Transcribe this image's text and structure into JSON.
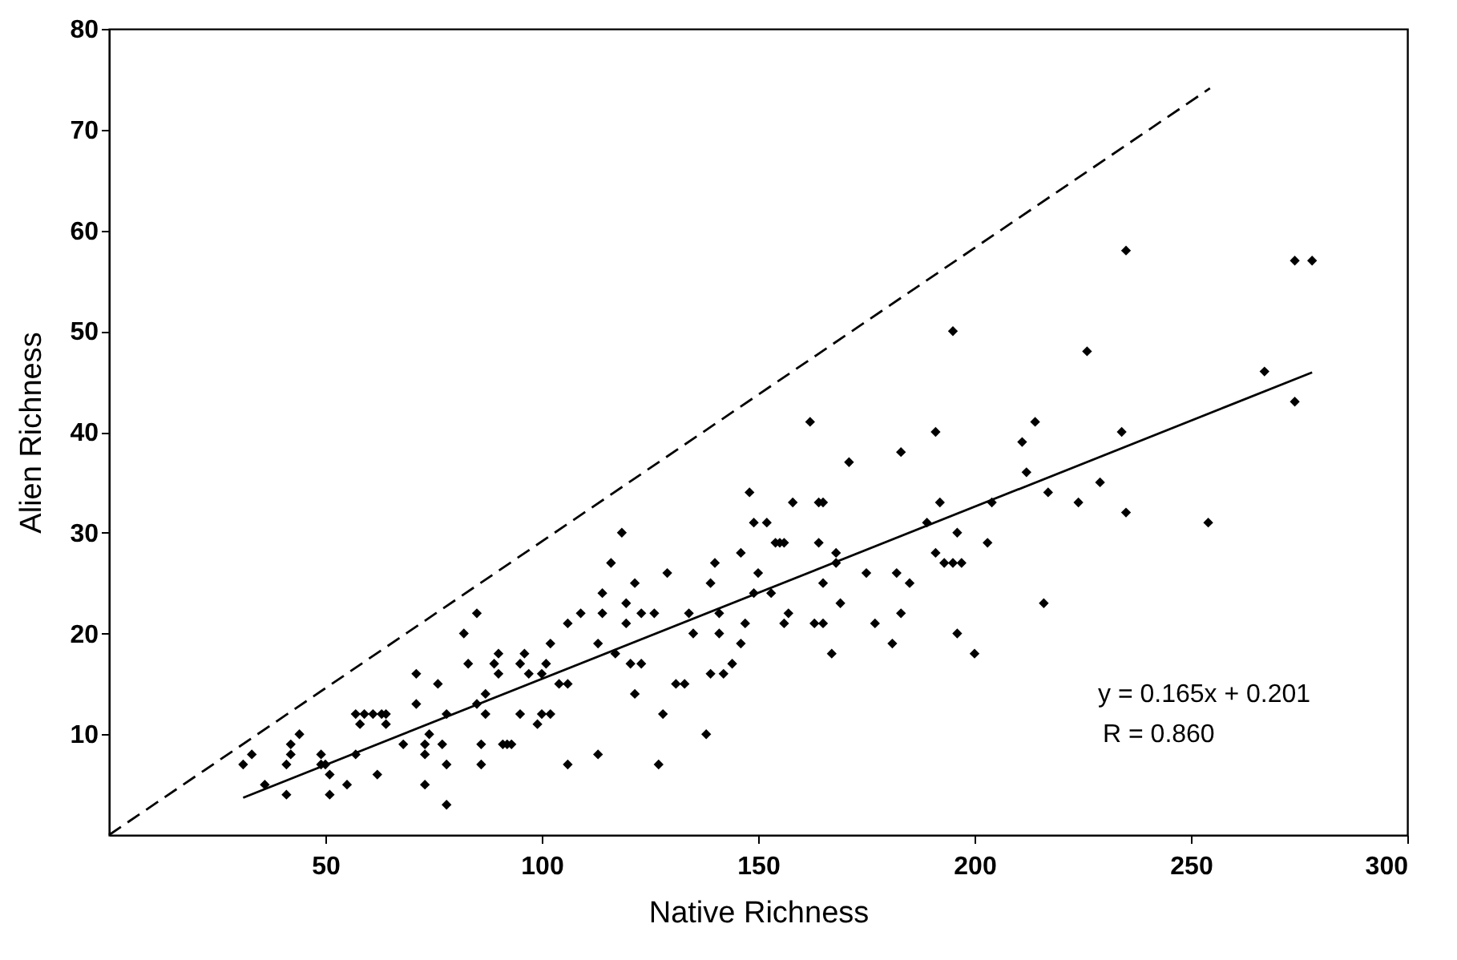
{
  "chart_data": {
    "type": "scatter",
    "xlabel": "Native Richness",
    "ylabel": "Alien Richness",
    "xlim": [
      0,
      300
    ],
    "ylim": [
      0,
      80
    ],
    "xticks": [
      50,
      100,
      150,
      200,
      250,
      300
    ],
    "yticks": [
      10,
      20,
      30,
      40,
      50,
      60,
      70,
      80
    ],
    "grid": false,
    "annotations": [
      "y = 0.165x + 0.201",
      "R = 0.860"
    ],
    "series": [
      {
        "color": "#000000",
        "marker": "diamond",
        "x": [
          31,
          33,
          36,
          41,
          41,
          42,
          42,
          44,
          49,
          49,
          50,
          51,
          51,
          55,
          57,
          57,
          59,
          61,
          63,
          64,
          58,
          64,
          62,
          68,
          71,
          71,
          73,
          73,
          73,
          74,
          76,
          77,
          78,
          78,
          78,
          82,
          83,
          85,
          85,
          87,
          87,
          86,
          86,
          89,
          90,
          90,
          91,
          92,
          93,
          95,
          95,
          96,
          97,
          99,
          100,
          100,
          102,
          101,
          102,
          104,
          106,
          106,
          106,
          109,
          113,
          113,
          114,
          114,
          116,
          117,
          118.5,
          119.5,
          119.5,
          120.5,
          123,
          121.5,
          121.5,
          123,
          126,
          127,
          128,
          129,
          131,
          133,
          134,
          135,
          138,
          139,
          140,
          141,
          141,
          139,
          142,
          144,
          146,
          146,
          147,
          148,
          149,
          152,
          149,
          150,
          153,
          154,
          155,
          156,
          156,
          157,
          158,
          163,
          165,
          164,
          165,
          164,
          165,
          167,
          168,
          168,
          169,
          171,
          175,
          177,
          181,
          182,
          183,
          183,
          185,
          189,
          191,
          192,
          193,
          195,
          197,
          196,
          196,
          200,
          195,
          162,
          191,
          235,
          274,
          278,
          226,
          267,
          274,
          211,
          214,
          234,
          212,
          229,
          204,
          217,
          224,
          235,
          254,
          203,
          216
        ],
        "values": [
          7,
          8,
          5,
          4,
          7,
          8,
          9,
          10,
          8,
          7,
          7,
          6,
          4,
          5,
          8,
          12,
          12,
          12,
          12,
          12,
          11,
          11,
          6,
          9,
          16,
          13,
          9,
          8,
          5,
          10,
          15,
          9,
          12,
          7,
          3,
          20,
          17,
          22,
          13,
          14,
          12,
          9,
          7,
          17,
          18,
          16,
          9,
          9,
          9,
          12,
          17,
          18,
          16,
          11,
          12,
          16,
          12,
          17,
          19,
          15,
          15,
          21,
          7,
          22,
          19,
          8,
          24,
          22,
          27,
          18,
          30,
          23,
          21,
          17,
          17,
          25,
          14,
          22,
          22,
          7,
          12,
          26,
          15,
          15,
          22,
          20,
          10,
          25,
          27,
          22,
          20,
          16,
          16,
          17,
          28,
          19,
          21,
          34,
          31,
          31,
          24,
          26,
          24,
          29,
          29,
          29,
          21,
          22,
          33,
          21,
          21,
          33,
          33,
          29,
          25,
          18,
          28,
          27,
          23,
          37,
          26,
          21,
          19,
          26,
          38,
          22,
          25,
          31,
          28,
          33,
          27,
          27,
          27,
          30,
          20,
          18,
          50,
          41,
          40,
          58,
          57,
          57,
          48,
          46,
          43,
          39,
          41,
          40,
          36,
          35,
          33,
          34,
          33,
          32,
          31,
          29,
          23
        ]
      },
      {
        "type": "line",
        "line_style": "solid",
        "color": "#000000",
        "x": [
          31,
          278
        ],
        "values": [
          3.7,
          45.9
        ]
      },
      {
        "type": "line",
        "line_style": "dashed",
        "color": "#000000",
        "x": [
          0,
          254.4
        ],
        "values": [
          0,
          74.1
        ]
      }
    ]
  }
}
